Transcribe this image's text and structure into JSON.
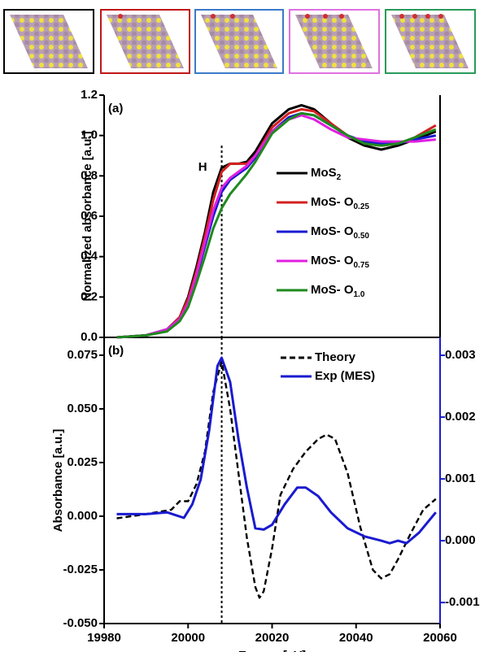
{
  "chart_data": [
    {
      "type": "line",
      "annotation": "(a)",
      "ylabel": "Normalized absorbance [a.u.]",
      "xlim": [
        19980,
        20060
      ],
      "ylim": [
        0,
        1.2
      ],
      "yticks": [
        {
          "value": 0,
          "label": "0.0"
        },
        0.2,
        0.4,
        0.6,
        0.8,
        {
          "value": 1,
          "label": "1.0"
        },
        1.2
      ],
      "vline": {
        "x": 20008,
        "top": 0.95,
        "label": "H"
      },
      "x": [
        19983,
        19990,
        19995,
        19998,
        20000,
        20002,
        20004,
        20006,
        20008,
        20010,
        20012,
        20014,
        20016,
        20018,
        20020,
        20024,
        20027,
        20030,
        20034,
        20038,
        20042,
        20046,
        20050,
        20054,
        20059
      ],
      "series": [
        {
          "name": "MoS2",
          "color": "#000000",
          "values": [
            0,
            0.01,
            0.04,
            0.1,
            0.2,
            0.35,
            0.52,
            0.72,
            0.84,
            0.86,
            0.86,
            0.87,
            0.92,
            0.99,
            1.06,
            1.13,
            1.15,
            1.13,
            1.06,
            0.99,
            0.95,
            0.93,
            0.95,
            0.98,
            1.02
          ]
        },
        {
          "name": "MoS- O0.25",
          "color": "#d42020",
          "values": [
            0,
            0.01,
            0.04,
            0.1,
            0.19,
            0.33,
            0.5,
            0.68,
            0.82,
            0.86,
            0.86,
            0.86,
            0.9,
            0.97,
            1.04,
            1.11,
            1.13,
            1.12,
            1.06,
            1.0,
            0.96,
            0.95,
            0.96,
            0.99,
            1.05
          ]
        },
        {
          "name": "MoS- O0.50",
          "color": "#1a1ad0",
          "values": [
            0,
            0.01,
            0.04,
            0.09,
            0.17,
            0.3,
            0.45,
            0.6,
            0.72,
            0.78,
            0.81,
            0.84,
            0.89,
            0.95,
            1.02,
            1.09,
            1.11,
            1.1,
            1.05,
            1.0,
            0.97,
            0.96,
            0.96,
            0.98,
            1.0
          ]
        },
        {
          "name": "MoS- O0.75",
          "color": "#e020e0",
          "values": [
            0,
            0.01,
            0.04,
            0.09,
            0.17,
            0.31,
            0.47,
            0.63,
            0.74,
            0.79,
            0.82,
            0.85,
            0.9,
            0.96,
            1.02,
            1.08,
            1.1,
            1.08,
            1.03,
            0.99,
            0.98,
            0.97,
            0.97,
            0.97,
            0.98
          ]
        },
        {
          "name": "MoS- O1.0",
          "color": "#1e8a1e",
          "values": [
            0,
            0.01,
            0.03,
            0.08,
            0.15,
            0.27,
            0.4,
            0.54,
            0.64,
            0.71,
            0.76,
            0.81,
            0.87,
            0.94,
            1.01,
            1.08,
            1.11,
            1.1,
            1.05,
            1.0,
            0.96,
            0.95,
            0.96,
            0.99,
            1.03
          ]
        }
      ]
    },
    {
      "type": "line",
      "annotation": "(b)",
      "ylabel": "Absorbance [a.u.]",
      "xlabel": "Energy [eV]",
      "xlim": [
        19980,
        20060
      ],
      "xticks": [
        19980,
        20000,
        20020,
        20040,
        20060
      ],
      "ylim": [
        -0.05,
        0.0833
      ],
      "yticks": [
        {
          "value": -0.05,
          "label": "-0.050"
        },
        -0.025,
        {
          "value": 0,
          "label": "0.000"
        },
        0.025,
        {
          "value": 0.05,
          "label": "0.050"
        },
        0.075
      ],
      "y2lim": [
        -0.00134,
        0.00329
      ],
      "y2color": "#1a1ad0",
      "y2ticks": [
        -0.001,
        {
          "value": 0,
          "label": "0.000"
        },
        0.001,
        0.002,
        0.003
      ],
      "vline": {
        "x": 20008
      },
      "series": [
        {
          "name": "Theory",
          "color": "#000000",
          "linestyle": "dashed",
          "x": [
            19983,
            19990,
            19996,
            19998,
            20000,
            20002,
            20004,
            20006,
            20008,
            20010,
            20012,
            20014,
            20016,
            20017,
            20018,
            20020,
            20022,
            20025,
            20028,
            20031,
            20033,
            20035,
            20038,
            20041,
            20044,
            20046,
            20048,
            20050,
            20053,
            20056,
            20059
          ],
          "values": [
            -0.001,
            0.001,
            0.003,
            0.007,
            0.007,
            0.015,
            0.03,
            0.058,
            0.072,
            0.05,
            0.02,
            -0.01,
            -0.033,
            -0.038,
            -0.035,
            -0.015,
            0.01,
            0.022,
            0.03,
            0.036,
            0.038,
            0.036,
            0.02,
            -0.005,
            -0.025,
            -0.029,
            -0.027,
            -0.02,
            -0.008,
            0.003,
            0.008
          ]
        },
        {
          "name": "Exp (MES)",
          "color": "#1a1ad0",
          "axis": "y2",
          "x": [
            19983,
            19990,
            19995,
            19999,
            20001,
            20003,
            20005,
            20007,
            20008,
            20010,
            20012,
            20014,
            20016,
            20018,
            20020,
            20023,
            20026,
            20028,
            20031,
            20034,
            20038,
            20042,
            20046,
            20048,
            20050,
            20052,
            20055,
            20059
          ],
          "values": [
            0.00043,
            0.00043,
            0.00046,
            0.00037,
            0.00059,
            0.00099,
            0.00178,
            0.00283,
            0.00296,
            0.00257,
            0.00164,
            0.00086,
            0.0002,
            0.00018,
            0.00026,
            0.00059,
            0.00086,
            0.00086,
            0.00072,
            0.00046,
            0.0002,
            7e-05,
            0,
            -4e-05,
            0,
            -4e-05,
            0.00013,
            0.00046
          ]
        }
      ]
    }
  ]
}
